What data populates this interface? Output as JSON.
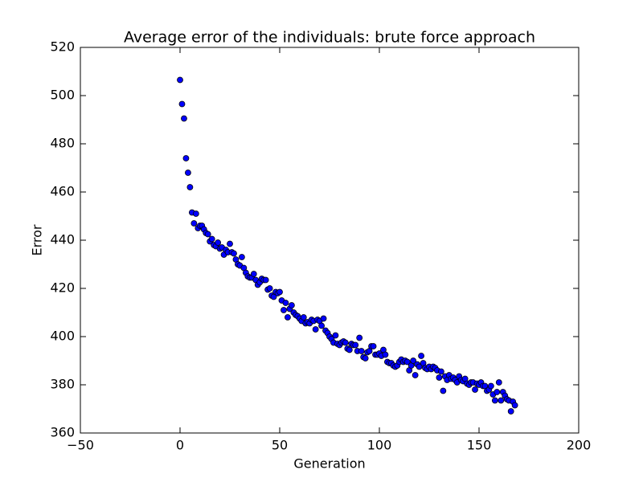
{
  "chart_data": {
    "type": "scatter",
    "title": "Average error of the individuals: brute force approach",
    "xlabel": "Generation",
    "ylabel": "Error",
    "xlim": [
      -50,
      200
    ],
    "ylim": [
      360,
      520
    ],
    "xticks": [
      {
        "value": -50,
        "label": "−50"
      },
      0,
      50,
      100,
      150,
      200
    ],
    "yticks": [
      360,
      380,
      400,
      420,
      440,
      460,
      480,
      500,
      520
    ],
    "grid": false,
    "series": [
      {
        "color": "#0000ff",
        "x": [
          0,
          1,
          2,
          3,
          4,
          5,
          6,
          7,
          8,
          9,
          10,
          11,
          12,
          13,
          14,
          15,
          16,
          17,
          18,
          19,
          20,
          21,
          22,
          23,
          24,
          25,
          26,
          27,
          28,
          29,
          30,
          31,
          32,
          33,
          34,
          35,
          36,
          37,
          38,
          39,
          40,
          41,
          42,
          43,
          44,
          45,
          46,
          47,
          48,
          49,
          50,
          51,
          52,
          53,
          54,
          55,
          56,
          57,
          58,
          59,
          60,
          61,
          62,
          63,
          64,
          65,
          66,
          67,
          68,
          69,
          70,
          71,
          72,
          73,
          74,
          75,
          76,
          77,
          78,
          79,
          80,
          81,
          82,
          83,
          84,
          85,
          86,
          87,
          88,
          89,
          90,
          91,
          92,
          93,
          94,
          95,
          96,
          97,
          98,
          99,
          100,
          101,
          102,
          103,
          104,
          105,
          106,
          107,
          108,
          109,
          110,
          111,
          112,
          113,
          114,
          115,
          116,
          117,
          118,
          119,
          120,
          121,
          122,
          123,
          124,
          125,
          126,
          127,
          128,
          129,
          130,
          131,
          132,
          133,
          134,
          135,
          136,
          137,
          138,
          139,
          140,
          141,
          142,
          143,
          144,
          145,
          146,
          147,
          148,
          149,
          150,
          151,
          152,
          153,
          154,
          155,
          156,
          157,
          158,
          159,
          160,
          161,
          162,
          163,
          164,
          165,
          166,
          167,
          168
        ],
        "values": [
          506.5,
          496.5,
          490.5,
          474,
          468,
          462,
          451.5,
          447,
          451,
          445,
          446,
          446,
          444.5,
          443,
          442.5,
          439.5,
          440.5,
          438,
          437.5,
          439,
          436.5,
          437,
          434,
          436,
          435,
          438.5,
          435,
          434.5,
          432,
          430,
          429.5,
          433,
          428.5,
          426.5,
          425,
          424.5,
          424.5,
          426,
          423.5,
          421.5,
          422.5,
          424,
          423.5,
          423.5,
          419.5,
          420,
          417,
          416.5,
          418.5,
          418,
          418.5,
          415,
          411,
          414,
          408,
          411.5,
          413,
          410,
          409,
          408.5,
          407.5,
          406.5,
          408,
          405.5,
          406,
          405.5,
          407,
          406.5,
          403,
          407,
          406.5,
          404.5,
          407.5,
          402.5,
          401.5,
          400,
          399,
          397.5,
          400.5,
          397,
          396.5,
          397.5,
          398,
          397.5,
          395,
          394.5,
          397,
          396.5,
          396.5,
          394,
          399.5,
          394,
          391.5,
          391,
          393.5,
          394,
          396,
          396,
          392.5,
          392.5,
          393,
          392,
          394.5,
          392.5,
          389.5,
          389,
          389,
          388,
          387.5,
          388,
          389.5,
          390.5,
          389.5,
          390,
          389.5,
          386,
          388,
          390,
          384,
          388.5,
          387.5,
          392,
          389,
          387,
          386.5,
          387.5,
          386.5,
          387.5,
          387,
          386,
          383,
          385.5,
          377.5,
          383.5,
          382,
          384,
          382.5,
          383,
          382,
          381,
          383.5,
          382,
          381.5,
          382.5,
          380.5,
          380,
          381,
          381,
          378,
          380.5,
          380,
          381,
          379.5,
          379.5,
          377.5,
          378,
          379.5,
          376,
          373.5,
          377,
          381,
          373.5,
          377,
          375.5,
          374,
          373.5,
          369,
          373,
          371.5
        ]
      }
    ]
  }
}
